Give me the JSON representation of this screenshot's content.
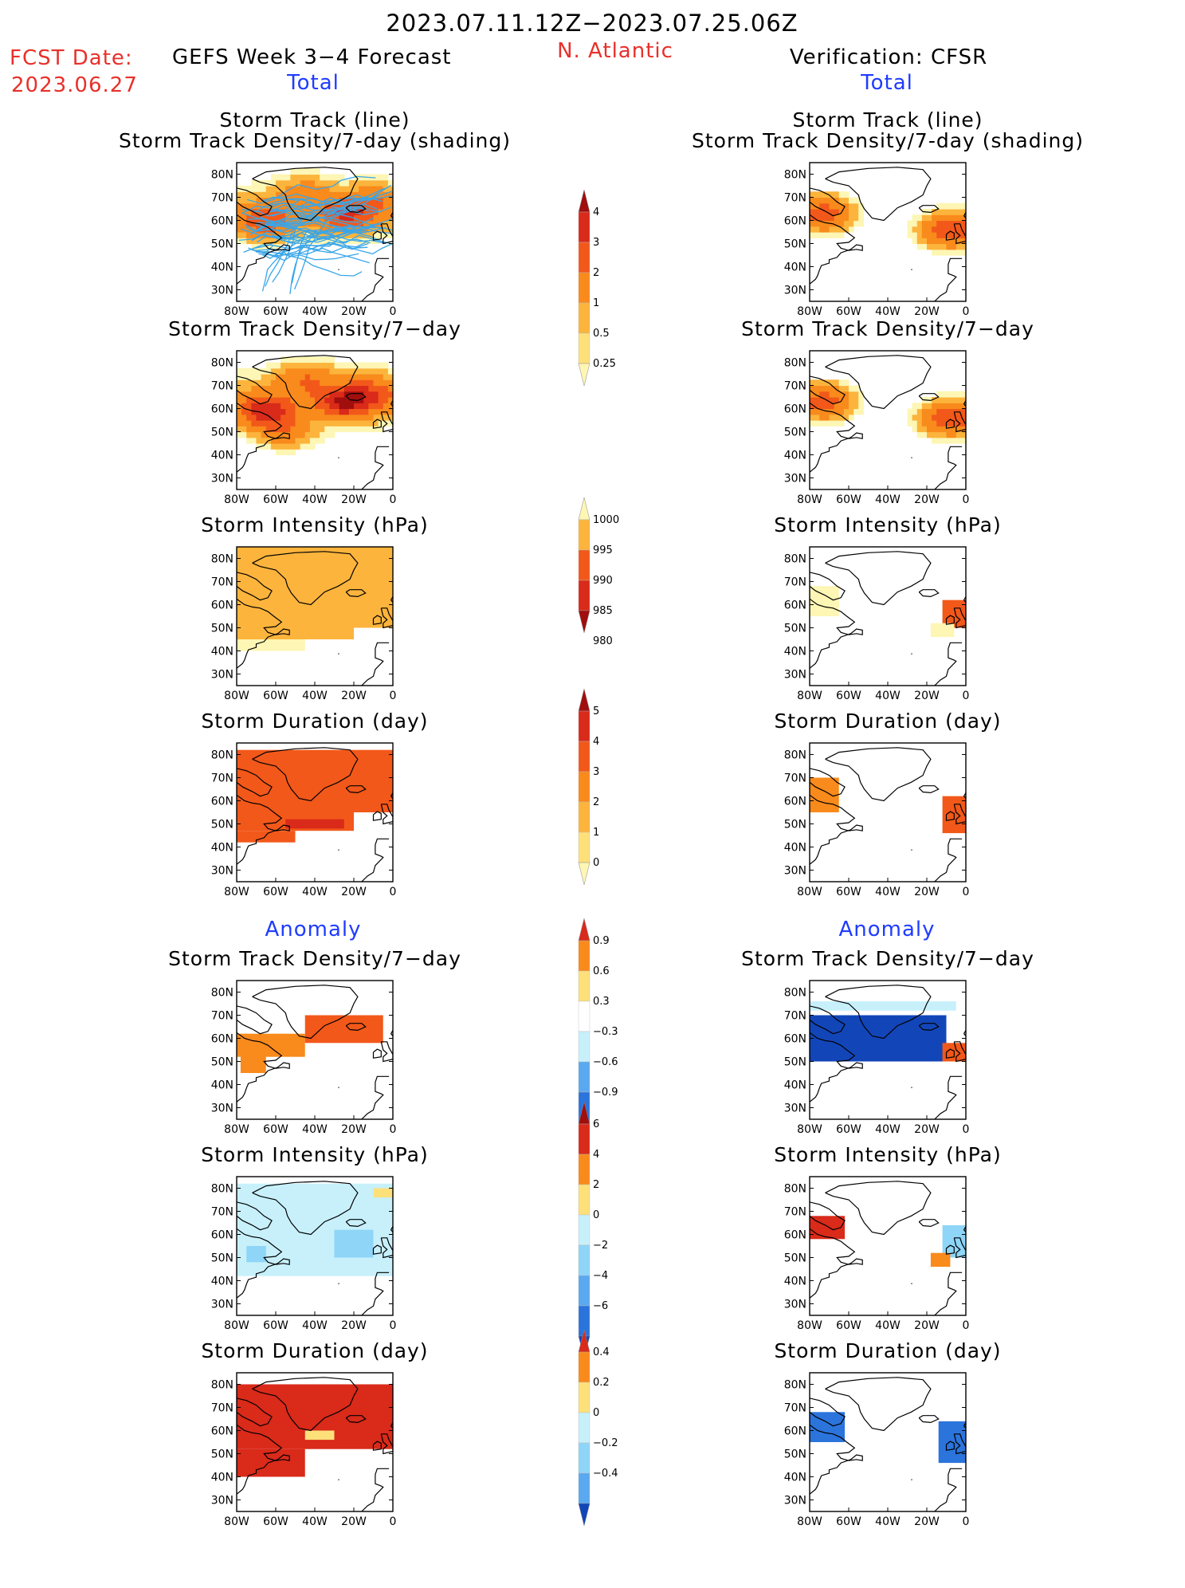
{
  "header": {
    "date_range": "2023.07.11.12Z−2023.07.25.06Z",
    "fcst_label": "FCST Date:",
    "fcst_date": "2023.06.27",
    "forecast_title": "GEFS Week 3−4 Forecast",
    "region": "N. Atlantic",
    "verification": "Verification: CFSR",
    "total_left": "Total",
    "total_right": "Total",
    "anomaly_left": "Anomaly",
    "anomaly_right": "Anomaly"
  },
  "axes": {
    "lat_ticks": [
      "80N",
      "70N",
      "60N",
      "50N",
      "40N",
      "30N"
    ],
    "lon_ticks": [
      "80W",
      "60W",
      "40W",
      "20W",
      "0"
    ]
  },
  "colors": {
    "track_line": "#3aa6e8",
    "warm": [
      "#fdf6b4",
      "#fde07a",
      "#fcb43c",
      "#f98a1c",
      "#f2581a",
      "#d92a1a",
      "#a00e0e"
    ],
    "cool": [
      "#c7f0fb",
      "#8ed5f8",
      "#5aa8f0",
      "#2b74dc",
      "#1246b8"
    ]
  },
  "panels": [
    {
      "id": "fc-track",
      "title_lines": [
        "Storm Track (line)",
        "Storm Track Density/7-day (shading)"
      ]
    },
    {
      "id": "fc-density",
      "title_lines": [
        "Storm Track Density/7−day"
      ]
    },
    {
      "id": "fc-intensity",
      "title_lines": [
        "Storm Intensity (hPa)"
      ]
    },
    {
      "id": "fc-duration",
      "title_lines": [
        "Storm Duration (day)"
      ]
    },
    {
      "id": "ob-track",
      "title_lines": [
        "Storm Track (line)",
        "Storm Track Density/7-day (shading)"
      ]
    },
    {
      "id": "ob-density",
      "title_lines": [
        "Storm Track Density/7−day"
      ]
    },
    {
      "id": "ob-intensity",
      "title_lines": [
        "Storm Intensity (hPa)"
      ]
    },
    {
      "id": "ob-duration",
      "title_lines": [
        "Storm Duration (day)"
      ]
    },
    {
      "id": "fa-density",
      "title_lines": [
        "Storm Track Density/7−day"
      ]
    },
    {
      "id": "fa-intensity",
      "title_lines": [
        "Storm Intensity (hPa)"
      ]
    },
    {
      "id": "fa-duration",
      "title_lines": [
        "Storm Duration (day)"
      ]
    },
    {
      "id": "oa-density",
      "title_lines": [
        "Storm Track Density/7−day"
      ]
    },
    {
      "id": "oa-intensity",
      "title_lines": [
        "Storm Intensity (hPa)"
      ]
    },
    {
      "id": "oa-duration",
      "title_lines": [
        "Storm Duration (day)"
      ]
    }
  ],
  "colorbars": [
    {
      "id": "cb-density",
      "labels": [
        "4",
        "3",
        "2",
        "1",
        "0.5",
        "0.25"
      ]
    },
    {
      "id": "cb-intensity",
      "labels": [
        "1000",
        "995",
        "990",
        "985",
        "980"
      ]
    },
    {
      "id": "cb-duration",
      "labels": [
        "5",
        "4",
        "3",
        "2",
        "1",
        "0"
      ]
    },
    {
      "id": "cb-density-anom",
      "labels": [
        "0.9",
        "0.6",
        "0.3",
        "−0.3",
        "−0.6",
        "−0.9"
      ]
    },
    {
      "id": "cb-intensity-anom",
      "labels": [
        "6",
        "4",
        "2",
        "0",
        "−2",
        "−4",
        "−6"
      ]
    },
    {
      "id": "cb-duration-anom",
      "labels": [
        "0.4",
        "0.2",
        "0",
        "−0.2",
        "−0.4"
      ]
    }
  ],
  "chart_data": {
    "type": "heatmap",
    "domain": {
      "lon_range": [
        -80,
        0
      ],
      "lat_range": [
        25,
        85
      ]
    },
    "panels": {
      "fc-track": {
        "kind": "density",
        "blobs": [
          {
            "lon": -65,
            "lat": 60,
            "v": 2.5
          },
          {
            "lon": -25,
            "lat": 62,
            "v": 2.5
          },
          {
            "lon": -45,
            "lat": 72,
            "v": 1.2
          },
          {
            "lon": -10,
            "lat": 68,
            "v": 1.5
          }
        ],
        "base": 0.6
      },
      "fc-density": {
        "kind": "density",
        "blobs": [
          {
            "lon": -65,
            "lat": 59,
            "v": 3.2
          },
          {
            "lon": -25,
            "lat": 63,
            "v": 3.4
          },
          {
            "lon": -45,
            "lat": 73,
            "v": 1.6
          },
          {
            "lon": -10,
            "lat": 67,
            "v": 1.8
          },
          {
            "lon": -55,
            "lat": 50,
            "v": 1.4
          }
        ],
        "base": 0.7
      },
      "fc-intensity": {
        "kind": "block",
        "blocks": [
          {
            "lon": [
              -80,
              0
            ],
            "lat": [
              50,
              85
            ],
            "v": 992
          },
          {
            "lon": [
              -80,
              -20
            ],
            "lat": [
              45,
              50
            ],
            "v": 994
          },
          {
            "lon": [
              -80,
              -45
            ],
            "lat": [
              40,
              45
            ],
            "v": 997
          }
        ]
      },
      "fc-duration": {
        "kind": "block",
        "blocks": [
          {
            "lon": [
              -80,
              0
            ],
            "lat": [
              55,
              82
            ],
            "v": 3.4
          },
          {
            "lon": [
              -80,
              -20
            ],
            "lat": [
              47,
              55
            ],
            "v": 3.8
          },
          {
            "lon": [
              -55,
              -25
            ],
            "lat": [
              48,
              52
            ],
            "v": 4.5
          },
          {
            "lon": [
              -80,
              -50
            ],
            "lat": [
              42,
              47
            ],
            "v": 3.2
          }
        ]
      },
      "ob-track": {
        "kind": "density",
        "blobs": [
          {
            "lon": -73,
            "lat": 63,
            "v": 2.6
          },
          {
            "lon": -8,
            "lat": 56,
            "v": 3.0
          }
        ],
        "base": 0
      },
      "ob-density": {
        "kind": "density",
        "blobs": [
          {
            "lon": -73,
            "lat": 63,
            "v": 2.6
          },
          {
            "lon": -8,
            "lat": 56,
            "v": 3.0
          }
        ],
        "base": 0
      },
      "ob-intensity": {
        "kind": "block",
        "blocks": [
          {
            "lon": [
              -80,
              -65
            ],
            "lat": [
              55,
              68
            ],
            "v": 996.5
          },
          {
            "lon": [
              -12,
              0
            ],
            "lat": [
              50,
              62
            ],
            "v": 990
          },
          {
            "lon": [
              -18,
              -6
            ],
            "lat": [
              46,
              52
            ],
            "v": 997
          }
        ]
      },
      "ob-duration": {
        "kind": "block",
        "blocks": [
          {
            "lon": [
              -80,
              -65
            ],
            "lat": [
              55,
              70
            ],
            "v": 2.5
          },
          {
            "lon": [
              -12,
              0
            ],
            "lat": [
              46,
              62
            ],
            "v": 3.2
          }
        ]
      },
      "fa-density": {
        "kind": "block",
        "blocks": [
          {
            "lon": [
              -80,
              -45
            ],
            "lat": [
              52,
              62
            ],
            "v": 0.5
          },
          {
            "lon": [
              -45,
              -5
            ],
            "lat": [
              58,
              70
            ],
            "v": 0.7
          },
          {
            "lon": [
              -78,
              -65
            ],
            "lat": [
              45,
              58
            ],
            "v": 0.4
          }
        ]
      },
      "fa-intensity": {
        "kind": "block",
        "blocks": [
          {
            "lon": [
              -80,
              0
            ],
            "lat": [
              42,
              82
            ],
            "v": -1
          },
          {
            "lon": [
              -30,
              -10
            ],
            "lat": [
              50,
              62
            ],
            "v": -2.5
          },
          {
            "lon": [
              -75,
              -65
            ],
            "lat": [
              48,
              55
            ],
            "v": -2.5
          },
          {
            "lon": [
              -10,
              0
            ],
            "lat": [
              76,
              80
            ],
            "v": 1
          }
        ]
      },
      "fa-duration": {
        "kind": "block",
        "blocks": [
          {
            "lon": [
              -80,
              0
            ],
            "lat": [
              52,
              80
            ],
            "v": 0.5
          },
          {
            "lon": [
              -80,
              -45
            ],
            "lat": [
              40,
              52
            ],
            "v": 0.5
          },
          {
            "lon": [
              -45,
              -30
            ],
            "lat": [
              56,
              60
            ],
            "v": 0.1
          }
        ]
      },
      "oa-density": {
        "kind": "block",
        "blocks": [
          {
            "lon": [
              -80,
              -5
            ],
            "lat": [
              72,
              76
            ],
            "v": -0.4
          },
          {
            "lon": [
              -80,
              -10
            ],
            "lat": [
              50,
              70
            ],
            "v": -1
          },
          {
            "lon": [
              -12,
              0
            ],
            "lat": [
              50,
              58
            ],
            "v": 0.7
          }
        ]
      },
      "oa-intensity": {
        "kind": "block",
        "blocks": [
          {
            "lon": [
              -80,
              -62
            ],
            "lat": [
              58,
              68
            ],
            "v": 5
          },
          {
            "lon": [
              -12,
              0
            ],
            "lat": [
              50,
              64
            ],
            "v": -3
          },
          {
            "lon": [
              -18,
              -8
            ],
            "lat": [
              46,
              52
            ],
            "v": 2.5
          }
        ]
      },
      "oa-duration": {
        "kind": "block",
        "blocks": [
          {
            "lon": [
              -80,
              -62
            ],
            "lat": [
              55,
              68
            ],
            "v": -0.5
          },
          {
            "lon": [
              -14,
              0
            ],
            "lat": [
              46,
              64
            ],
            "v": -0.5
          }
        ]
      }
    }
  }
}
